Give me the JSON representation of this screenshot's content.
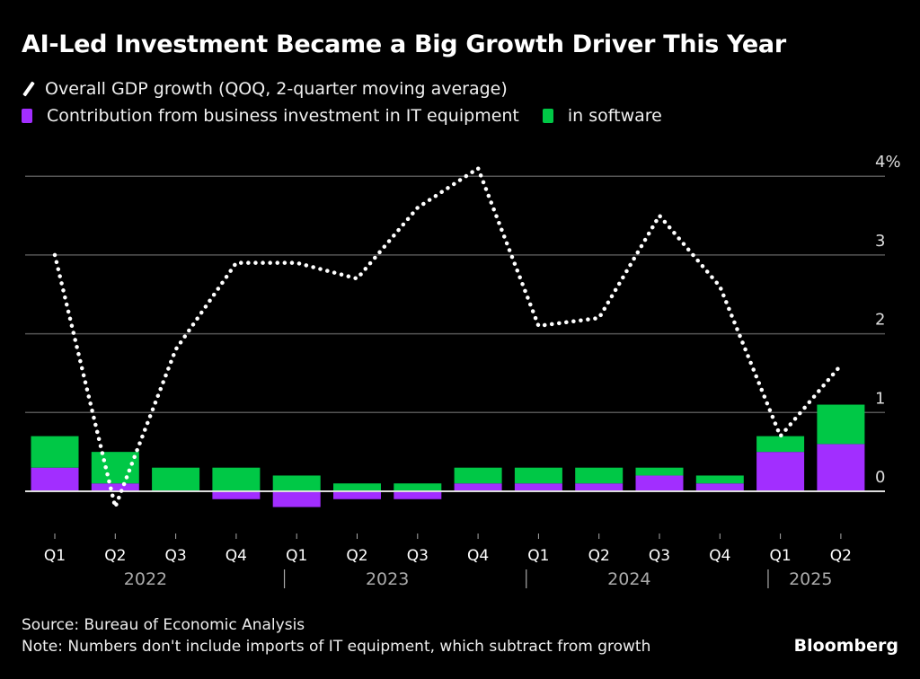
{
  "title": "AI-Led Investment Became a Big Growth Driver This Year",
  "legend": {
    "line_label": "Overall GDP growth (QOQ, 2-quarter moving average)",
    "equipment_label": "Contribution from business investment in IT equipment",
    "software_label": "in software"
  },
  "colors": {
    "equipment": "#a22eff",
    "software": "#00c846",
    "line": "#ffffff",
    "grid": "#555555",
    "background": "#000000"
  },
  "footer": {
    "source": "Source: Bureau of Economic Analysis",
    "note": "Note: Numbers don't include imports of IT equipment, which subtract from growth",
    "brand": "Bloomberg"
  },
  "chart_data": {
    "type": "bar",
    "stacked": true,
    "title": "AI-Led Investment Became a Big Growth Driver This Year",
    "categories": [
      "Q1",
      "Q2",
      "Q3",
      "Q4",
      "Q1",
      "Q2",
      "Q3",
      "Q4",
      "Q1",
      "Q2",
      "Q3",
      "Q4",
      "Q1",
      "Q2"
    ],
    "year_groups": [
      {
        "label": "2022",
        "start": 0,
        "end": 3
      },
      {
        "label": "2023",
        "start": 4,
        "end": 7
      },
      {
        "label": "2024",
        "start": 8,
        "end": 11
      },
      {
        "label": "2025",
        "start": 12,
        "end": 13
      }
    ],
    "series": [
      {
        "name": "Contribution from business investment in IT equipment",
        "type": "bar",
        "values": [
          0.3,
          0.1,
          0.0,
          -0.1,
          -0.2,
          -0.1,
          -0.1,
          0.1,
          0.1,
          0.1,
          0.2,
          0.1,
          0.5,
          0.6
        ]
      },
      {
        "name": "in software",
        "type": "bar",
        "values": [
          0.4,
          0.4,
          0.3,
          0.3,
          0.2,
          0.1,
          0.1,
          0.2,
          0.2,
          0.2,
          0.1,
          0.1,
          0.2,
          0.5
        ]
      },
      {
        "name": "Overall GDP growth (QOQ, 2-quarter moving average)",
        "type": "line",
        "style": "dotted",
        "values": [
          3.0,
          -0.2,
          1.8,
          2.9,
          2.9,
          2.7,
          3.6,
          4.1,
          2.1,
          2.2,
          3.5,
          2.6,
          0.7,
          1.6
        ]
      }
    ],
    "yticks": [
      0,
      1,
      2,
      3,
      4
    ],
    "ytick_labels": [
      "0",
      "1",
      "2",
      "3",
      "4%"
    ],
    "ylim": [
      -0.5,
      4.2
    ],
    "xlabel": "",
    "ylabel": "",
    "grid": true,
    "y_axis_side": "right",
    "legend_position": "top-left"
  }
}
